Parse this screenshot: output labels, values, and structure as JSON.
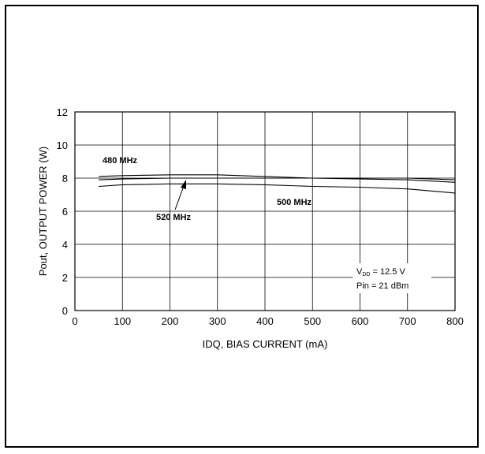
{
  "chart_data": {
    "type": "line",
    "xlabel": "IDQ, BIAS CURRENT (mA)",
    "ylabel": "Pout, OUTPUT POWER (W)",
    "xlim": [
      0,
      800
    ],
    "ylim": [
      0,
      12
    ],
    "xticks": [
      0,
      100,
      200,
      300,
      400,
      500,
      600,
      700,
      800
    ],
    "yticks": [
      0,
      2,
      4,
      6,
      8,
      10,
      12
    ],
    "grid": true,
    "series": [
      {
        "name": "480 MHz",
        "x": [
          50,
          100,
          200,
          300,
          400,
          500,
          600,
          700,
          800
        ],
        "values": [
          8.1,
          8.15,
          8.2,
          8.2,
          8.1,
          8.0,
          7.95,
          7.9,
          7.75
        ]
      },
      {
        "name": "520 MHz",
        "x": [
          50,
          100,
          200,
          300,
          400,
          500,
          600,
          700,
          800
        ],
        "values": [
          7.9,
          7.95,
          8.0,
          8.0,
          8.0,
          8.0,
          8.0,
          8.0,
          7.9
        ]
      },
      {
        "name": "500 MHz",
        "x": [
          50,
          100,
          200,
          300,
          400,
          500,
          600,
          700,
          800
        ],
        "values": [
          7.5,
          7.6,
          7.65,
          7.65,
          7.6,
          7.5,
          7.45,
          7.35,
          7.1
        ]
      }
    ],
    "annotations": {
      "label_480": "480 MHz",
      "label_520": "520 MHz",
      "label_500": "500 MHz",
      "cond_vdd_prefix": "V",
      "cond_vdd_sub": "DD",
      "cond_vdd_value": " = 12.5 V",
      "cond_pin": "Pin = 21 dBm"
    }
  }
}
